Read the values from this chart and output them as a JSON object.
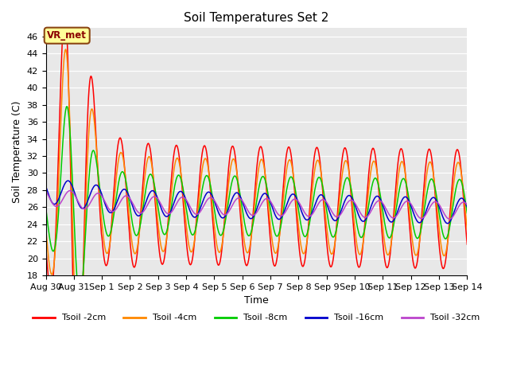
{
  "title": "Soil Temperatures Set 2",
  "xlabel": "Time",
  "ylabel": "Soil Temperature (C)",
  "ylim": [
    18,
    47
  ],
  "yticks": [
    18,
    20,
    22,
    24,
    26,
    28,
    30,
    32,
    34,
    36,
    38,
    40,
    42,
    44,
    46
  ],
  "xtick_labels": [
    "Aug 30",
    "Aug 31",
    "Sep 1",
    "Sep 2",
    "Sep 3",
    "Sep 4",
    "Sep 5",
    "Sep 6",
    "Sep 7",
    "Sep 8",
    "Sep 9",
    "Sep 10",
    "Sep 11",
    "Sep 12",
    "Sep 13",
    "Sep 14"
  ],
  "line_colors": [
    "#ff0000",
    "#ff8800",
    "#00cc00",
    "#0000cc",
    "#bb44cc"
  ],
  "line_labels": [
    "Tsoil -2cm",
    "Tsoil -4cm",
    "Tsoil -8cm",
    "Tsoil -16cm",
    "Tsoil -32cm"
  ],
  "bg_color": "#e8e8e8",
  "annotation_text": "VR_met",
  "grid_color": "#ffffff"
}
